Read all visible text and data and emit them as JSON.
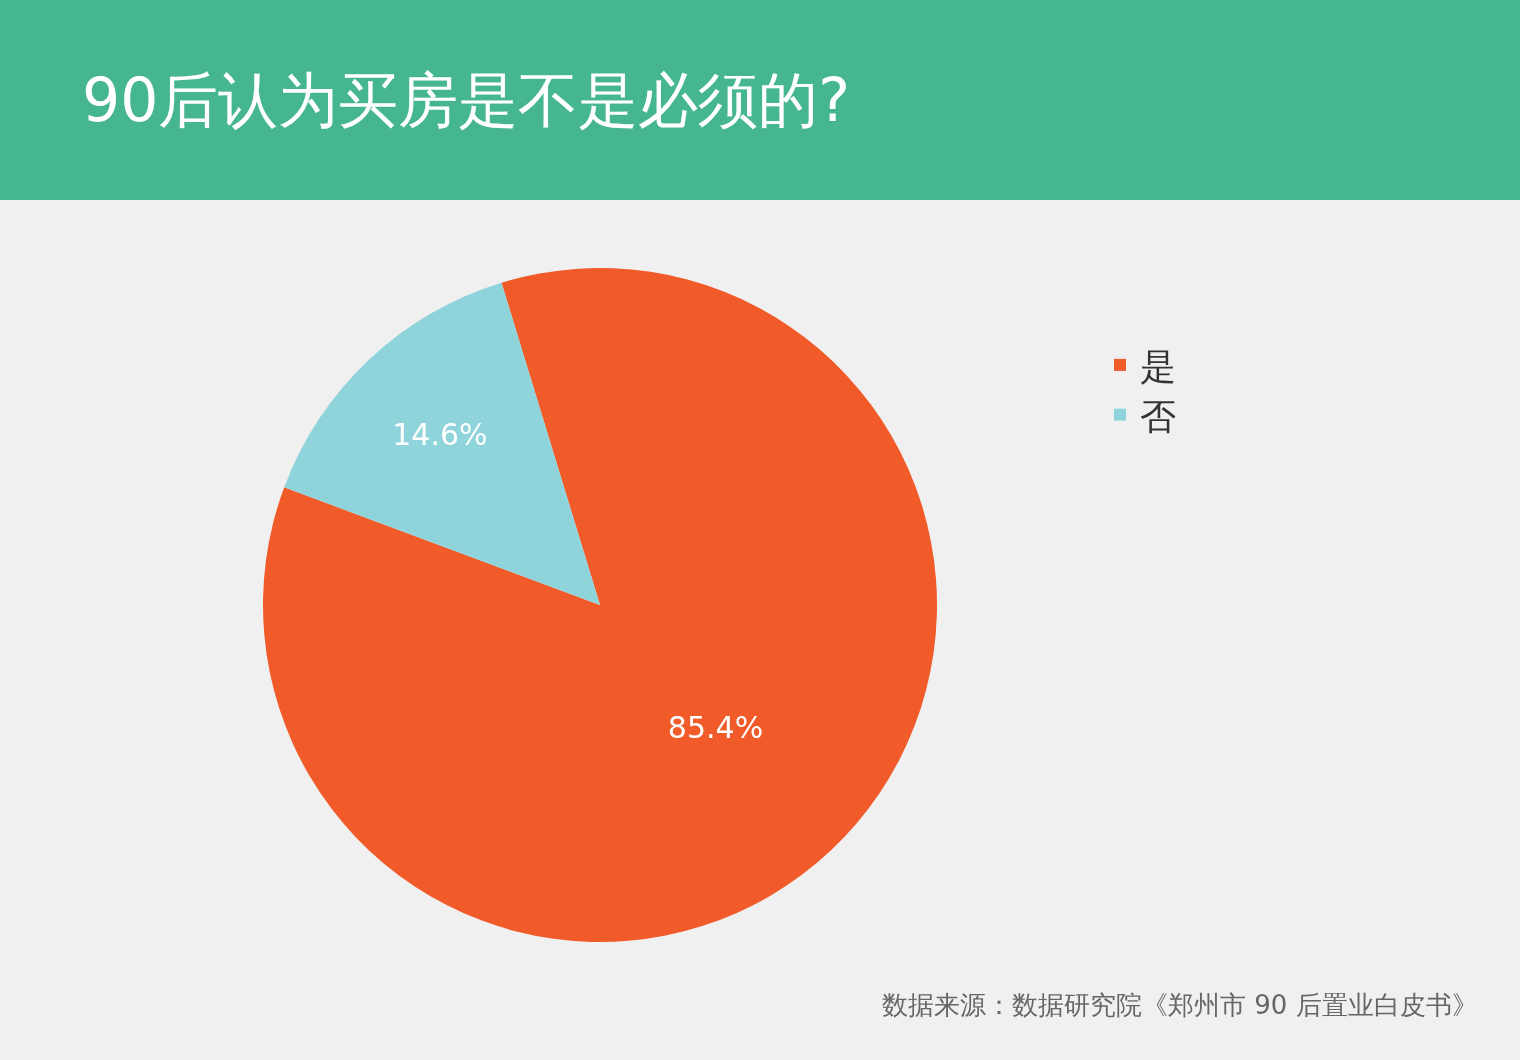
{
  "chart_data": {
    "type": "pie",
    "title": "90后认为买房是不是必须的?",
    "categories": [
      "是",
      "否"
    ],
    "values": [
      85.4,
      14.6
    ],
    "value_labels": [
      "85.4%",
      "14.6%"
    ],
    "colors": [
      "#f15a29",
      "#8fd3db"
    ],
    "legend": "right",
    "annotations": [
      "数据来源：数据研究院《郑州市 90 后置业白皮书》"
    ]
  }
}
